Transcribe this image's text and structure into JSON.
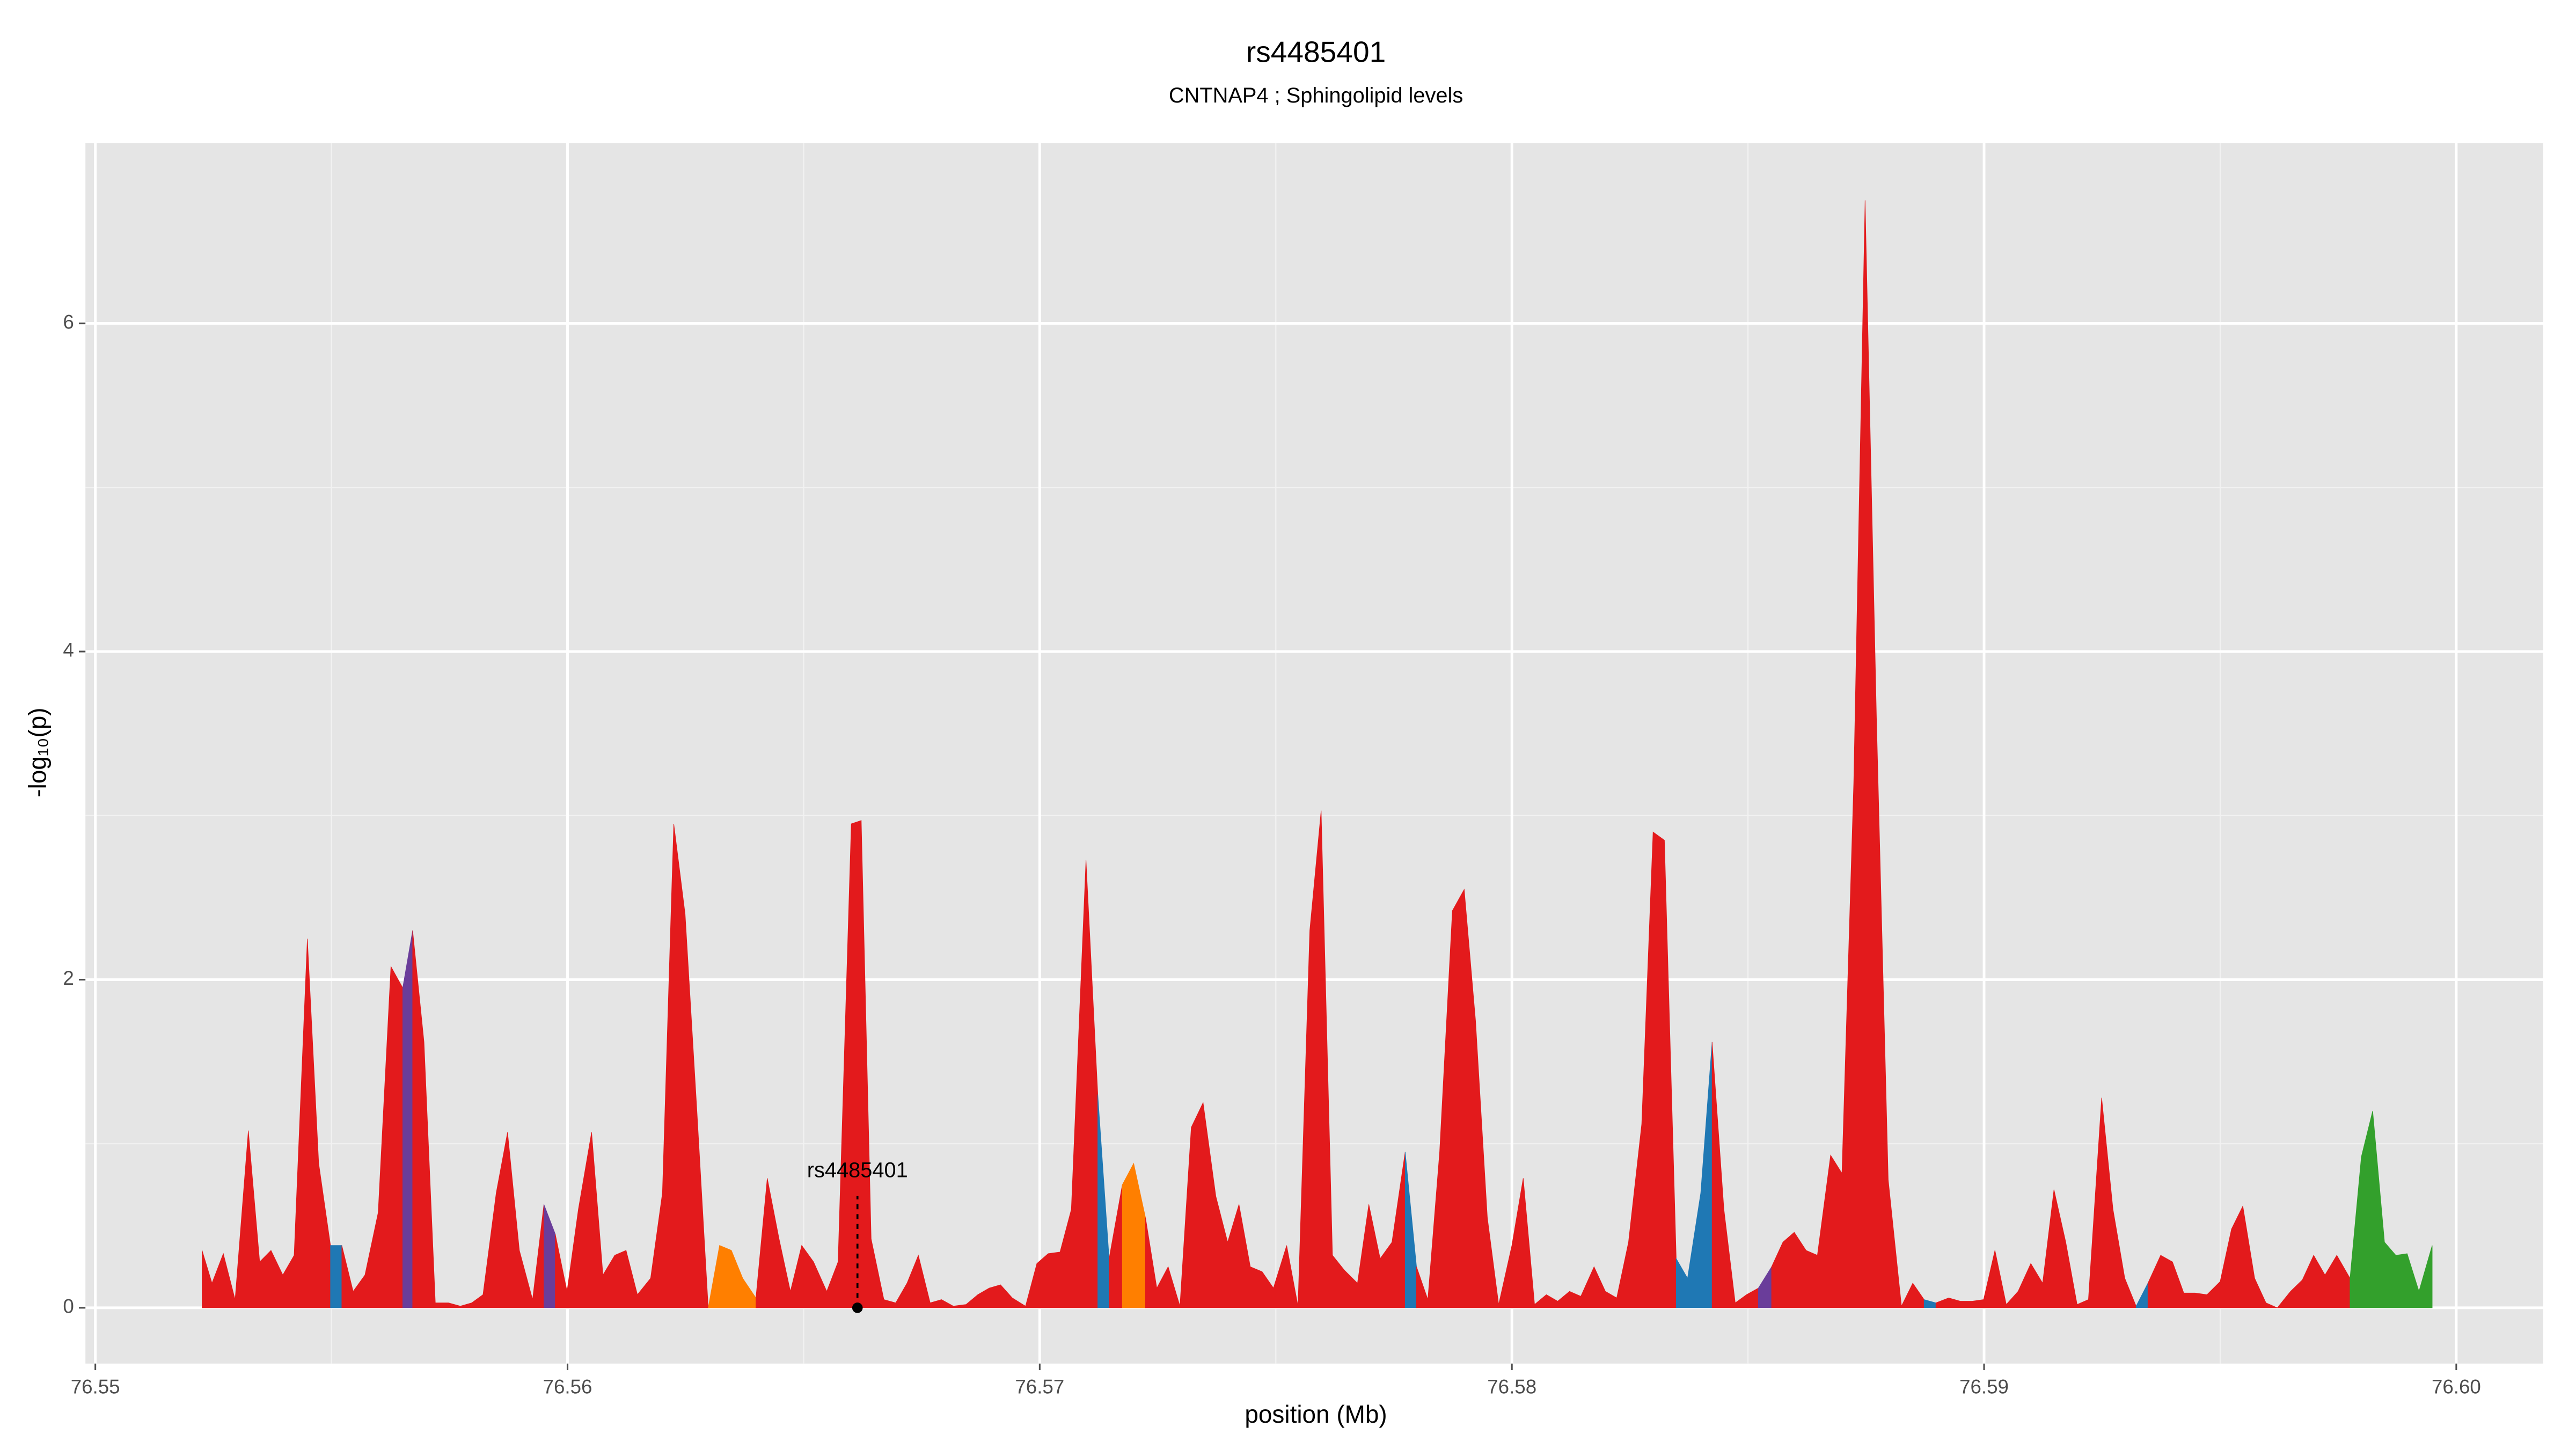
{
  "chart_data": {
    "type": "area",
    "title": "rs4485401",
    "subtitle": "CNTNAP4 ; Sphingolipid levels",
    "x_label": "position (Mb)",
    "y_label": "-log₁₀(p)",
    "xlim": [
      76.54979,
      76.60184
    ],
    "ylim": [
      -0.34,
      7.1
    ],
    "xticks": [
      76.55,
      76.56,
      76.57,
      76.58,
      76.59,
      {
        "value": 76.6,
        "label": "76.60"
      }
    ],
    "yticks": [
      0,
      2,
      4,
      6
    ],
    "minor_xgrid": [
      76.555,
      76.565,
      76.575,
      76.585,
      76.595
    ],
    "minor_ygrid": [
      1,
      3,
      5
    ],
    "grid": true,
    "background": "#e5e5e5",
    "annotation": {
      "label": "rs4485401",
      "x": 76.56614,
      "y": 0
    },
    "x": [
      76.55226,
      76.55247,
      76.55271,
      76.55296,
      76.55324,
      76.55348,
      76.55372,
      76.55397,
      76.55421,
      76.55449,
      76.55473,
      76.55498,
      76.55522,
      76.55546,
      76.55571,
      76.55599,
      76.55626,
      76.55651,
      76.55672,
      76.55696,
      76.5572,
      76.55748,
      76.55773,
      76.55797,
      76.55821,
      76.55849,
      76.55873,
      76.55898,
      76.55926,
      76.5595,
      76.55974,
      76.55999,
      76.56023,
      76.56051,
      76.56075,
      76.561,
      76.56124,
      76.56148,
      76.56176,
      76.56201,
      76.56225,
      76.56249,
      76.56274,
      76.56298,
      76.56322,
      76.56347,
      76.56371,
      76.56399,
      76.56423,
      76.56448,
      76.56472,
      76.56496,
      76.56521,
      76.56549,
      76.56573,
      76.56601,
      76.56622,
      76.56643,
      76.5667,
      76.56695,
      76.56719,
      76.56743,
      76.56768,
      76.56792,
      76.56817,
      76.56844,
      76.56869,
      76.56893,
      76.56917,
      76.56942,
      76.5697,
      76.56994,
      76.57018,
      76.57043,
      76.57067,
      76.57098,
      76.57123,
      76.57147,
      76.57175,
      76.57199,
      76.57224,
      76.57248,
      76.57272,
      76.57297,
      76.57321,
      76.57346,
      76.57373,
      76.57398,
      76.57422,
      76.57446,
      76.57471,
      76.57495,
      76.57523,
      76.57547,
      76.57572,
      76.57596,
      76.5762,
      76.57645,
      76.57673,
      76.57697,
      76.57721,
      76.57746,
      76.57774,
      76.57798,
      76.57822,
      76.57847,
      76.57874,
      76.57899,
      76.57923,
      76.57948,
      76.57972,
      76.58,
      76.58024,
      76.58048,
      76.58073,
      76.58097,
      76.58122,
      76.58146,
      76.58174,
      76.58198,
      76.58222,
      76.58247,
      76.58275,
      76.58299,
      76.58323,
      76.58348,
      76.58372,
      76.584,
      76.58424,
      76.58449,
      76.58473,
      76.58497,
      76.58522,
      76.5855,
      76.58574,
      76.58598,
      76.58623,
      76.58647,
      76.58675,
      76.58699,
      76.58724,
      76.58748,
      76.58772,
      76.58797,
      76.58825,
      76.58849,
      76.58873,
      76.58898,
      76.58925,
      76.5895,
      76.58974,
      76.58999,
      76.59023,
      76.59047,
      76.59072,
      76.59099,
      76.59124,
      76.59148,
      76.59173,
      76.59197,
      76.59221,
      76.59249,
      76.59273,
      76.59298,
      76.59322,
      76.59347,
      76.59374,
      76.59399,
      76.59423,
      76.59447,
      76.59472,
      76.595,
      76.59524,
      76.59548,
      76.59573,
      76.59597,
      76.59621,
      76.59649,
      76.59674,
      76.59698,
      76.59722,
      76.59747,
      76.59775,
      76.59799,
      76.59823,
      76.59848,
      76.59872,
      76.59896,
      76.59921,
      76.59949
    ],
    "values": [
      0.35,
      0.15,
      0.33,
      0.05,
      1.08,
      0.28,
      0.35,
      0.2,
      0.32,
      2.25,
      0.88,
      0.38,
      0.38,
      0.1,
      0.2,
      0.58,
      2.08,
      1.95,
      2.3,
      1.62,
      0.03,
      0.03,
      0.01,
      0.03,
      0.08,
      0.7,
      1.07,
      0.35,
      0.05,
      0.63,
      0.45,
      0.1,
      0.6,
      1.07,
      0.2,
      0.32,
      0.35,
      0.08,
      0.18,
      0.7,
      2.95,
      2.4,
      1.2,
      0.0,
      0.38,
      0.35,
      0.18,
      0.06,
      0.79,
      0.42,
      0.1,
      0.38,
      0.28,
      0.1,
      0.28,
      2.95,
      2.97,
      0.42,
      0.05,
      0.03,
      0.15,
      0.32,
      0.03,
      0.05,
      0.01,
      0.02,
      0.08,
      0.12,
      0.14,
      0.06,
      0.01,
      0.27,
      0.33,
      0.34,
      0.6,
      2.73,
      1.3,
      0.3,
      0.75,
      0.88,
      0.55,
      0.12,
      0.25,
      0.01,
      1.1,
      1.25,
      0.68,
      0.4,
      0.63,
      0.25,
      0.22,
      0.12,
      0.38,
      0.01,
      2.3,
      3.03,
      0.32,
      0.23,
      0.15,
      0.63,
      0.3,
      0.4,
      0.95,
      0.25,
      0.05,
      0.95,
      2.42,
      2.55,
      1.75,
      0.55,
      0.02,
      0.38,
      0.79,
      0.02,
      0.08,
      0.04,
      0.1,
      0.07,
      0.25,
      0.1,
      0.06,
      0.4,
      1.12,
      2.9,
      2.85,
      0.3,
      0.18,
      0.7,
      1.62,
      0.6,
      0.03,
      0.08,
      0.12,
      0.25,
      0.4,
      0.46,
      0.35,
      0.32,
      0.93,
      0.82,
      3.2,
      6.75,
      3.6,
      0.78,
      0.01,
      0.15,
      0.05,
      0.03,
      0.06,
      0.04,
      0.04,
      0.05,
      0.35,
      0.02,
      0.1,
      0.27,
      0.15,
      0.72,
      0.4,
      0.02,
      0.05,
      1.28,
      0.6,
      0.18,
      0.01,
      0.15,
      0.32,
      0.28,
      0.09,
      0.09,
      0.08,
      0.16,
      0.48,
      0.62,
      0.18,
      0.03,
      0.0,
      0.1,
      0.17,
      0.32,
      0.2,
      0.32,
      0.18,
      0.92,
      1.2,
      0.4,
      0.32,
      0.33,
      0.1,
      0.38
    ],
    "colors": [
      "#e31a1c",
      "#e31a1c",
      "#e31a1c",
      "#e31a1c",
      "#e31a1c",
      "#e31a1c",
      "#e31a1c",
      "#e31a1c",
      "#e31a1c",
      "#e31a1c",
      "#e31a1c",
      "#1f78b4",
      "#e31a1c",
      "#e31a1c",
      "#e31a1c",
      "#e31a1c",
      "#e31a1c",
      "#6a3d9a",
      "#e31a1c",
      "#e31a1c",
      "#e31a1c",
      "#e31a1c",
      "#e31a1c",
      "#e31a1c",
      "#e31a1c",
      "#e31a1c",
      "#e31a1c",
      "#e31a1c",
      "#e31a1c",
      "#6a3d9a",
      "#e31a1c",
      "#e31a1c",
      "#e31a1c",
      "#e31a1c",
      "#e31a1c",
      "#e31a1c",
      "#e31a1c",
      "#e31a1c",
      "#e31a1c",
      "#e31a1c",
      "#e31a1c",
      "#e31a1c",
      "#e31a1c",
      "#ff7f00",
      "#ff7f00",
      "#ff7f00",
      "#ff7f00",
      "#e31a1c",
      "#e31a1c",
      "#e31a1c",
      "#e31a1c",
      "#e31a1c",
      "#e31a1c",
      "#e31a1c",
      "#e31a1c",
      "#e31a1c",
      "#e31a1c",
      "#e31a1c",
      "#e31a1c",
      "#e31a1c",
      "#e31a1c",
      "#e31a1c",
      "#e31a1c",
      "#e31a1c",
      "#e31a1c",
      "#e31a1c",
      "#e31a1c",
      "#e31a1c",
      "#e31a1c",
      "#e31a1c",
      "#e31a1c",
      "#e31a1c",
      "#e31a1c",
      "#e31a1c",
      "#e31a1c",
      "#e31a1c",
      "#1f78b4",
      "#e31a1c",
      "#ff7f00",
      "#ff7f00",
      "#e31a1c",
      "#e31a1c",
      "#e31a1c",
      "#e31a1c",
      "#e31a1c",
      "#e31a1c",
      "#e31a1c",
      "#e31a1c",
      "#e31a1c",
      "#e31a1c",
      "#e31a1c",
      "#e31a1c",
      "#e31a1c",
      "#e31a1c",
      "#e31a1c",
      "#e31a1c",
      "#e31a1c",
      "#e31a1c",
      "#e31a1c",
      "#e31a1c",
      "#e31a1c",
      "#e31a1c",
      "#1f78b4",
      "#e31a1c",
      "#e31a1c",
      "#e31a1c",
      "#e31a1c",
      "#e31a1c",
      "#e31a1c",
      "#e31a1c",
      "#e31a1c",
      "#e31a1c",
      "#e31a1c",
      "#e31a1c",
      "#e31a1c",
      "#e31a1c",
      "#e31a1c",
      "#e31a1c",
      "#e31a1c",
      "#e31a1c",
      "#e31a1c",
      "#e31a1c",
      "#e31a1c",
      "#e31a1c",
      "#e31a1c",
      "#1f78b4",
      "#1f78b4",
      "#1f78b4",
      "#e31a1c",
      "#e31a1c",
      "#e31a1c",
      "#e31a1c",
      "#6a3d9a",
      "#e31a1c",
      "#e31a1c",
      "#e31a1c",
      "#e31a1c",
      "#e31a1c",
      "#e31a1c",
      "#e31a1c",
      "#e31a1c",
      "#e31a1c",
      "#e31a1c",
      "#e31a1c",
      "#e31a1c",
      "#e31a1c",
      "#1f78b4",
      "#e31a1c",
      "#e31a1c",
      "#e31a1c",
      "#e31a1c",
      "#e31a1c",
      "#e31a1c",
      "#e31a1c",
      "#e31a1c",
      "#e31a1c",
      "#e31a1c",
      "#e31a1c",
      "#e31a1c",
      "#e31a1c",
      "#e31a1c",
      "#e31a1c",
      "#e31a1c",
      "#e31a1c",
      "#1f78b4",
      "#e31a1c",
      "#e31a1c",
      "#e31a1c",
      "#e31a1c",
      "#e31a1c",
      "#e31a1c",
      "#e31a1c",
      "#e31a1c",
      "#e31a1c",
      "#e31a1c",
      "#e31a1c",
      "#e31a1c",
      "#e31a1c",
      "#e31a1c",
      "#e31a1c",
      "#e31a1c",
      "#e31a1c",
      "#33a02c",
      "#33a02c",
      "#33a02c",
      "#33a02c",
      "#33a02c",
      "#33a02c",
      "#33a02c",
      "#33a02c"
    ]
  }
}
